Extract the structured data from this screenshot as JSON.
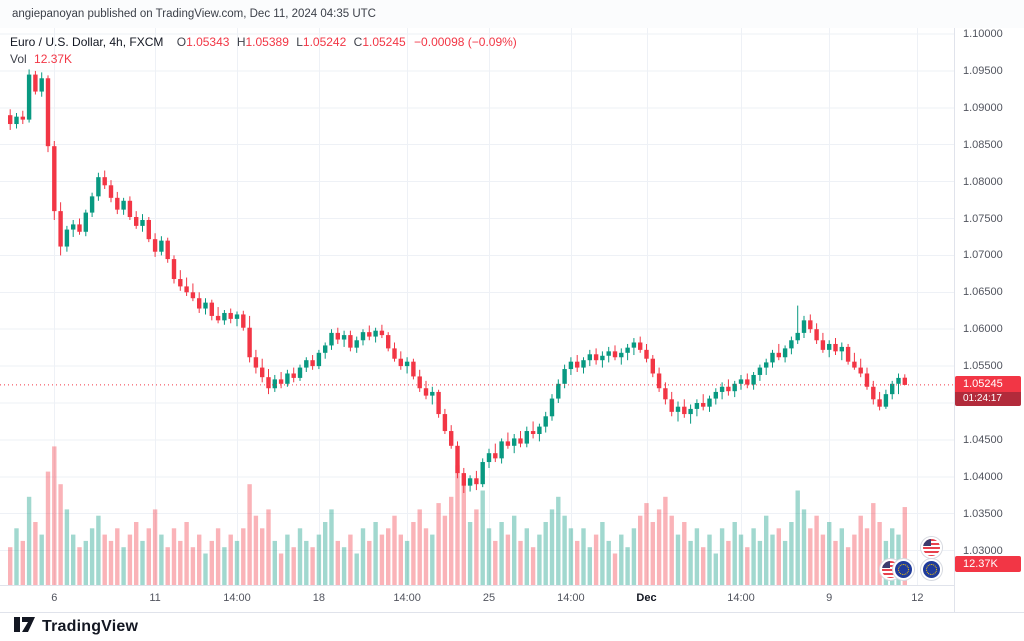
{
  "attribution": "angiepanoyan published on TradingView.com, Dec 11, 2024 04:35 UTC",
  "legend": {
    "title": "Euro / U.S. Dollar, 4h, FXCM",
    "ohlc": [
      {
        "label": "O",
        "value": "1.05343"
      },
      {
        "label": "H",
        "value": "1.05389"
      },
      {
        "label": "L",
        "value": "1.05242"
      },
      {
        "label": "C",
        "value": "1.05245"
      }
    ],
    "change": "−0.00098 (−0.09%)",
    "vol_label": "Vol",
    "vol_value": "12.37K"
  },
  "price_badge": {
    "price": "1.05245",
    "countdown": "01:24:17"
  },
  "volume_badge": {
    "value": "12.37K"
  },
  "footer": {
    "brand": "TradingView"
  },
  "colors": {
    "up": "#089981",
    "down": "#f23645",
    "vol_up": "rgba(8,153,129,0.38)",
    "vol_down": "rgba(242,54,69,0.38)",
    "grid": "#eef1f6",
    "last_price_line": "#f23645"
  },
  "chart_data": {
    "type": "candlestick+volume",
    "title": "Euro / U.S. Dollar, 4h, FXCM",
    "y_axis_range": [
      1.0253,
      1.1007
    ],
    "grid": true,
    "y_ticks": [
      "1.10000",
      "1.09500",
      "1.09000",
      "1.08500",
      "1.08000",
      "1.07500",
      "1.07000",
      "1.06500",
      "1.06000",
      "1.05500",
      "1.05000",
      "1.04500",
      "1.04000",
      "1.03500",
      "1.03000"
    ],
    "x_labels": [
      {
        "label": "6",
        "i": 7,
        "bold": false
      },
      {
        "label": "11",
        "i": 23,
        "bold": false
      },
      {
        "label": "14:00",
        "i": 36,
        "bold": false
      },
      {
        "label": "18",
        "i": 49,
        "bold": false
      },
      {
        "label": "14:00",
        "i": 63,
        "bold": false
      },
      {
        "label": "25",
        "i": 76,
        "bold": false
      },
      {
        "label": "14:00",
        "i": 89,
        "bold": false
      },
      {
        "label": "Dec",
        "i": 101,
        "bold": true
      },
      {
        "label": "14:00",
        "i": 116,
        "bold": false
      },
      {
        "label": "9",
        "i": 130,
        "bold": false
      },
      {
        "label": "12",
        "i": 144,
        "bold": false
      }
    ],
    "last_price": 1.05245,
    "candles": [
      [
        1.089,
        1.0898,
        1.087,
        1.0878
      ],
      [
        1.0878,
        1.0893,
        1.0872,
        1.0888
      ],
      [
        1.0888,
        1.0896,
        1.0878,
        1.0884
      ],
      [
        1.0884,
        1.0952,
        1.088,
        1.0945
      ],
      [
        1.0945,
        1.095,
        1.0918,
        1.0922
      ],
      [
        1.0922,
        1.0948,
        1.0915,
        1.094
      ],
      [
        1.094,
        1.0944,
        1.084,
        1.0848
      ],
      [
        1.0848,
        1.0855,
        1.0748,
        1.076
      ],
      [
        1.076,
        1.0772,
        1.07,
        1.0712
      ],
      [
        1.0712,
        1.074,
        1.0705,
        1.0735
      ],
      [
        1.0735,
        1.0748,
        1.0725,
        1.0742
      ],
      [
        1.0742,
        1.075,
        1.0728,
        1.0732
      ],
      [
        1.0732,
        1.0762,
        1.0726,
        1.0758
      ],
      [
        1.0758,
        1.0785,
        1.0752,
        1.078
      ],
      [
        1.078,
        1.0812,
        1.0774,
        1.0806
      ],
      [
        1.0806,
        1.0815,
        1.079,
        1.0795
      ],
      [
        1.0795,
        1.0802,
        1.0772,
        1.0778
      ],
      [
        1.0778,
        1.0786,
        1.0756,
        1.0762
      ],
      [
        1.0762,
        1.0778,
        1.0755,
        1.0774
      ],
      [
        1.0774,
        1.078,
        1.0748,
        1.0752
      ],
      [
        1.0752,
        1.076,
        1.0736,
        1.074
      ],
      [
        1.074,
        1.0756,
        1.0732,
        1.0748
      ],
      [
        1.0748,
        1.0752,
        1.0718,
        1.0722
      ],
      [
        1.0722,
        1.073,
        1.0698,
        1.0705
      ],
      [
        1.0705,
        1.0726,
        1.07,
        1.072
      ],
      [
        1.072,
        1.0724,
        1.069,
        1.0695
      ],
      [
        1.0695,
        1.07,
        1.0662,
        1.0668
      ],
      [
        1.0668,
        1.068,
        1.0652,
        1.0658
      ],
      [
        1.0658,
        1.067,
        1.0645,
        1.065
      ],
      [
        1.065,
        1.0662,
        1.0638,
        1.0642
      ],
      [
        1.0642,
        1.065,
        1.0622,
        1.0628
      ],
      [
        1.0628,
        1.0642,
        1.062,
        1.0636
      ],
      [
        1.0636,
        1.064,
        1.0612,
        1.0618
      ],
      [
        1.0618,
        1.063,
        1.0608,
        1.0612
      ],
      [
        1.0612,
        1.0626,
        1.0606,
        1.0622
      ],
      [
        1.0622,
        1.0628,
        1.0608,
        1.0614
      ],
      [
        1.0614,
        1.0624,
        1.0604,
        1.062
      ],
      [
        1.062,
        1.0625,
        1.0598,
        1.0602
      ],
      [
        1.0602,
        1.0618,
        1.0555,
        1.0562
      ],
      [
        1.0562,
        1.0572,
        1.054,
        1.0548
      ],
      [
        1.0548,
        1.056,
        1.0528,
        1.0535
      ],
      [
        1.0535,
        1.0546,
        1.0512,
        1.052
      ],
      [
        1.052,
        1.0538,
        1.0515,
        1.0532
      ],
      [
        1.0532,
        1.0542,
        1.052,
        1.0526
      ],
      [
        1.0526,
        1.0545,
        1.0522,
        1.054
      ],
      [
        1.054,
        1.0548,
        1.0528,
        1.0534
      ],
      [
        1.0534,
        1.0552,
        1.053,
        1.0548
      ],
      [
        1.0548,
        1.0562,
        1.0542,
        1.0558
      ],
      [
        1.0558,
        1.0565,
        1.0545,
        1.055
      ],
      [
        1.055,
        1.0572,
        1.0546,
        1.0568
      ],
      [
        1.0568,
        1.0582,
        1.056,
        1.0578
      ],
      [
        1.0578,
        1.06,
        1.0572,
        1.0595
      ],
      [
        1.0595,
        1.0602,
        1.058,
        1.0586
      ],
      [
        1.0586,
        1.0598,
        1.0576,
        1.0592
      ],
      [
        1.0592,
        1.0598,
        1.057,
        1.0575
      ],
      [
        1.0575,
        1.059,
        1.0568,
        1.0585
      ],
      [
        1.0585,
        1.06,
        1.0578,
        1.0596
      ],
      [
        1.0596,
        1.0605,
        1.0585,
        1.059
      ],
      [
        1.059,
        1.0602,
        1.0582,
        1.0598
      ],
      [
        1.0598,
        1.0606,
        1.0588,
        1.0592
      ],
      [
        1.0592,
        1.0596,
        1.057,
        1.0574
      ],
      [
        1.0574,
        1.0582,
        1.0556,
        1.056
      ],
      [
        1.056,
        1.057,
        1.0545,
        1.055
      ],
      [
        1.055,
        1.0562,
        1.054,
        1.0556
      ],
      [
        1.0556,
        1.056,
        1.0532,
        1.0536
      ],
      [
        1.0536,
        1.0545,
        1.0515,
        1.052
      ],
      [
        1.052,
        1.053,
        1.0505,
        1.051
      ],
      [
        1.051,
        1.0522,
        1.0498,
        1.0515
      ],
      [
        1.0515,
        1.0518,
        1.048,
        1.0485
      ],
      [
        1.0485,
        1.0492,
        1.0458,
        1.0462
      ],
      [
        1.0462,
        1.047,
        1.0438,
        1.0442
      ],
      [
        1.0442,
        1.0448,
        1.0398,
        1.0405
      ],
      [
        1.0405,
        1.0412,
        1.0378,
        1.0388
      ],
      [
        1.0388,
        1.0402,
        1.038,
        1.0398
      ],
      [
        1.0398,
        1.0408,
        1.0382,
        1.039
      ],
      [
        1.039,
        1.0425,
        1.0386,
        1.042
      ],
      [
        1.042,
        1.0438,
        1.0412,
        1.0432
      ],
      [
        1.0432,
        1.0445,
        1.042,
        1.0425
      ],
      [
        1.0425,
        1.0452,
        1.0418,
        1.0448
      ],
      [
        1.0448,
        1.046,
        1.0438,
        1.0442
      ],
      [
        1.0442,
        1.0458,
        1.0432,
        1.0452
      ],
      [
        1.0452,
        1.0462,
        1.044,
        1.0445
      ],
      [
        1.0445,
        1.0468,
        1.044,
        1.0462
      ],
      [
        1.0462,
        1.0475,
        1.0452,
        1.0458
      ],
      [
        1.0458,
        1.0472,
        1.0448,
        1.0468
      ],
      [
        1.0468,
        1.0488,
        1.046,
        1.0482
      ],
      [
        1.0482,
        1.0512,
        1.0476,
        1.0506
      ],
      [
        1.0506,
        1.0532,
        1.05,
        1.0526
      ],
      [
        1.0526,
        1.0552,
        1.052,
        1.0546
      ],
      [
        1.0546,
        1.0562,
        1.0538,
        1.0556
      ],
      [
        1.0556,
        1.0565,
        1.0542,
        1.0548
      ],
      [
        1.0548,
        1.0562,
        1.054,
        1.0558
      ],
      [
        1.0558,
        1.0572,
        1.055,
        1.0566
      ],
      [
        1.0566,
        1.0574,
        1.0552,
        1.0558
      ],
      [
        1.0558,
        1.057,
        1.0548,
        1.0564
      ],
      [
        1.0564,
        1.0576,
        1.0555,
        1.057
      ],
      [
        1.057,
        1.0578,
        1.0558,
        1.0562
      ],
      [
        1.0562,
        1.0574,
        1.0552,
        1.0568
      ],
      [
        1.0568,
        1.058,
        1.0558,
        1.0575
      ],
      [
        1.0575,
        1.0588,
        1.0565,
        1.0582
      ],
      [
        1.0582,
        1.059,
        1.0568,
        1.0572
      ],
      [
        1.0572,
        1.058,
        1.0555,
        1.056
      ],
      [
        1.056,
        1.0565,
        1.0535,
        1.054
      ],
      [
        1.054,
        1.0548,
        1.0515,
        1.052
      ],
      [
        1.052,
        1.0528,
        1.0498,
        1.0505
      ],
      [
        1.0505,
        1.0515,
        1.0482,
        1.0488
      ],
      [
        1.0488,
        1.0502,
        1.0475,
        1.0495
      ],
      [
        1.0495,
        1.0505,
        1.048,
        1.0485
      ],
      [
        1.0485,
        1.0498,
        1.0472,
        1.0492
      ],
      [
        1.0492,
        1.0505,
        1.0482,
        1.05
      ],
      [
        1.05,
        1.0512,
        1.049,
        1.0495
      ],
      [
        1.0495,
        1.051,
        1.0488,
        1.0506
      ],
      [
        1.0506,
        1.052,
        1.0498,
        1.0515
      ],
      [
        1.0515,
        1.0528,
        1.0505,
        1.0522
      ],
      [
        1.0522,
        1.0532,
        1.051,
        1.0516
      ],
      [
        1.0516,
        1.053,
        1.0508,
        1.0526
      ],
      [
        1.0526,
        1.0538,
        1.0518,
        1.0532
      ],
      [
        1.0532,
        1.054,
        1.052,
        1.0525
      ],
      [
        1.0525,
        1.0542,
        1.0518,
        1.0538
      ],
      [
        1.0538,
        1.0552,
        1.053,
        1.0548
      ],
      [
        1.0548,
        1.056,
        1.0538,
        1.0555
      ],
      [
        1.0555,
        1.0572,
        1.0548,
        1.0568
      ],
      [
        1.0568,
        1.058,
        1.0558,
        1.0562
      ],
      [
        1.0562,
        1.0578,
        1.0555,
        1.0574
      ],
      [
        1.0574,
        1.059,
        1.0566,
        1.0585
      ],
      [
        1.0585,
        1.0632,
        1.058,
        1.0595
      ],
      [
        1.0595,
        1.0618,
        1.0588,
        1.0612
      ],
      [
        1.0612,
        1.062,
        1.0595,
        1.06
      ],
      [
        1.06,
        1.0608,
        1.058,
        1.0585
      ],
      [
        1.0585,
        1.0595,
        1.0568,
        1.0572
      ],
      [
        1.0572,
        1.0585,
        1.0562,
        1.058
      ],
      [
        1.058,
        1.0588,
        1.0565,
        1.057
      ],
      [
        1.057,
        1.0582,
        1.0558,
        1.0576
      ],
      [
        1.0576,
        1.058,
        1.0552,
        1.0556
      ],
      [
        1.0556,
        1.0568,
        1.0545,
        1.0548
      ],
      [
        1.0548,
        1.056,
        1.0535,
        1.054
      ],
      [
        1.054,
        1.0548,
        1.0518,
        1.0522
      ],
      [
        1.0522,
        1.053,
        1.0498,
        1.0505
      ],
      [
        1.0505,
        1.0515,
        1.049,
        1.0495
      ],
      [
        1.0495,
        1.0518,
        1.0492,
        1.0512
      ],
      [
        1.0512,
        1.053,
        1.0505,
        1.0526
      ],
      [
        1.0526,
        1.054,
        1.0512,
        1.0534
      ],
      [
        1.05343,
        1.05389,
        1.05242,
        1.05245
      ]
    ],
    "volumes": [
      6,
      9,
      7,
      14,
      10,
      8,
      18,
      22,
      16,
      12,
      8,
      6,
      7,
      9,
      11,
      8,
      7,
      9,
      6,
      8,
      10,
      7,
      9,
      12,
      8,
      6,
      9,
      7,
      10,
      6,
      8,
      5,
      7,
      9,
      6,
      8,
      7,
      9,
      16,
      11,
      9,
      12,
      7,
      5,
      8,
      6,
      9,
      7,
      6,
      8,
      10,
      12,
      7,
      6,
      8,
      5,
      9,
      7,
      10,
      8,
      9,
      11,
      8,
      7,
      10,
      12,
      9,
      8,
      13,
      11,
      14,
      19,
      16,
      10,
      12,
      15,
      9,
      7,
      10,
      8,
      11,
      7,
      9,
      6,
      8,
      10,
      12,
      14,
      11,
      9,
      7,
      9,
      6,
      8,
      10,
      7,
      5,
      8,
      6,
      9,
      11,
      13,
      10,
      12,
      14,
      11,
      8,
      10,
      7,
      9,
      6,
      8,
      5,
      9,
      7,
      10,
      8,
      6,
      9,
      7,
      11,
      8,
      9,
      7,
      10,
      15,
      12,
      9,
      11,
      8,
      10,
      7,
      9,
      6,
      8,
      11,
      9,
      13,
      10,
      7,
      9,
      8,
      12.37
    ]
  }
}
